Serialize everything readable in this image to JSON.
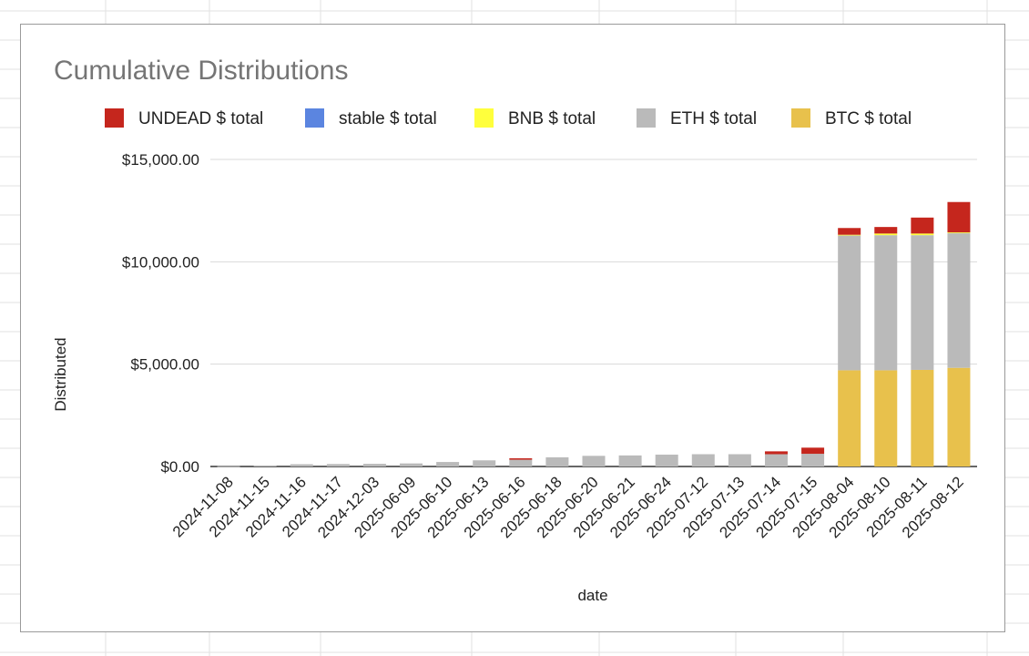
{
  "chart_data": {
    "type": "bar",
    "stacked": true,
    "title": "Cumulative Distributions",
    "xlabel": "date",
    "ylabel": "Distributed",
    "ylim": [
      0,
      15000
    ],
    "yticks": [
      "$0.00",
      "$5,000.00",
      "$10,000.00",
      "$15,000.00"
    ],
    "ytick_values": [
      0,
      5000,
      10000,
      15000
    ],
    "grid": true,
    "legend_position": "top",
    "categories": [
      "2024-11-08",
      "2024-11-15",
      "2024-11-16",
      "2024-11-17",
      "2024-12-03",
      "2025-06-09",
      "2025-06-10",
      "2025-06-13",
      "2025-06-16",
      "2025-06-18",
      "2025-06-20",
      "2025-06-21",
      "2025-06-24",
      "2025-07-12",
      "2025-07-13",
      "2025-07-14",
      "2025-07-15",
      "2025-08-04",
      "2025-08-10",
      "2025-08-11",
      "2025-08-12"
    ],
    "series": [
      {
        "name": "BTC $ total",
        "color": "#e8c14c",
        "values": [
          0,
          0,
          0,
          0,
          0,
          0,
          0,
          0,
          0,
          0,
          0,
          0,
          0,
          0,
          0,
          0,
          0,
          4700,
          4700,
          4720,
          4820
        ]
      },
      {
        "name": "ETH $ total",
        "color": "#bababa",
        "values": [
          15,
          50,
          110,
          120,
          130,
          150,
          220,
          300,
          330,
          450,
          520,
          540,
          580,
          600,
          600,
          600,
          620,
          6600,
          6600,
          6580,
          6600
        ]
      },
      {
        "name": "BNB $ total",
        "color": "#ffff3c",
        "values": [
          0,
          0,
          0,
          0,
          0,
          0,
          0,
          0,
          0,
          0,
          0,
          0,
          0,
          0,
          0,
          0,
          0,
          20,
          80,
          80,
          20
        ]
      },
      {
        "name": "stable $ total",
        "color": "#5b85e0",
        "values": [
          0,
          0,
          0,
          0,
          0,
          0,
          0,
          0,
          0,
          0,
          0,
          0,
          0,
          0,
          0,
          0,
          0,
          0,
          0,
          0,
          0
        ]
      },
      {
        "name": "UNDEAD $ total",
        "color": "#c5261d",
        "values": [
          0,
          0,
          0,
          0,
          0,
          0,
          0,
          0,
          70,
          0,
          0,
          0,
          0,
          0,
          0,
          140,
          300,
          330,
          320,
          780,
          1480
        ]
      }
    ],
    "legend_order": [
      "UNDEAD $ total",
      "stable $ total",
      "BNB $ total",
      "ETH $ total",
      "BTC $ total"
    ]
  }
}
